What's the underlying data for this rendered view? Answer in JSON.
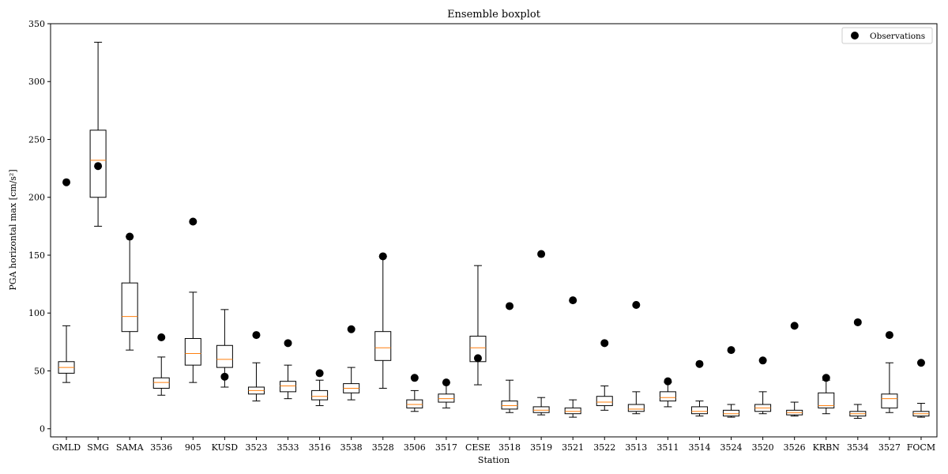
{
  "chart_data": {
    "type": "box",
    "title": "Ensemble boxplot",
    "xlabel": "Station",
    "ylabel": "PGA horizontal max [cm/s²]",
    "ylim": [
      -7,
      350
    ],
    "yticks": [
      0,
      50,
      100,
      150,
      200,
      250,
      300,
      350
    ],
    "legend": {
      "position": "top-right",
      "entries": [
        "Observations"
      ]
    },
    "colors": {
      "median": "#ff7f0e",
      "box": "#000000",
      "observation": "#000000"
    },
    "categories": [
      "GMLD",
      "SMG",
      "SAMA",
      "3536",
      "905",
      "KUSD",
      "3523",
      "3533",
      "3516",
      "3538",
      "3528",
      "3506",
      "3517",
      "CESE",
      "3518",
      "3519",
      "3521",
      "3522",
      "3513",
      "3511",
      "3514",
      "3524",
      "3520",
      "3526",
      "KRBN",
      "3534",
      "3527",
      "FOCM"
    ],
    "boxes": [
      {
        "whislo": 40,
        "q1": 48,
        "med": 53,
        "q3": 58,
        "whishi": 89
      },
      {
        "whislo": 175,
        "q1": 200,
        "med": 232,
        "q3": 258,
        "whishi": 334
      },
      {
        "whislo": 68,
        "q1": 84,
        "med": 97,
        "q3": 126,
        "whishi": 166
      },
      {
        "whislo": 29,
        "q1": 35,
        "med": 40,
        "q3": 44,
        "whishi": 62
      },
      {
        "whislo": 40,
        "q1": 55,
        "med": 65,
        "q3": 78,
        "whishi": 118
      },
      {
        "whislo": 36,
        "q1": 53,
        "med": 60,
        "q3": 72,
        "whishi": 103
      },
      {
        "whislo": 24,
        "q1": 30,
        "med": 33,
        "q3": 36,
        "whishi": 57
      },
      {
        "whislo": 26,
        "q1": 32,
        "med": 37,
        "q3": 41,
        "whishi": 55
      },
      {
        "whislo": 20,
        "q1": 25,
        "med": 28,
        "q3": 33,
        "whishi": 42
      },
      {
        "whislo": 25,
        "q1": 31,
        "med": 35,
        "q3": 39,
        "whishi": 53
      },
      {
        "whislo": 35,
        "q1": 59,
        "med": 70,
        "q3": 84,
        "whishi": 149
      },
      {
        "whislo": 15,
        "q1": 18,
        "med": 21,
        "q3": 25,
        "whishi": 33
      },
      {
        "whislo": 18,
        "q1": 23,
        "med": 26,
        "q3": 30,
        "whishi": 40
      },
      {
        "whislo": 38,
        "q1": 58,
        "med": 70,
        "q3": 80,
        "whishi": 141
      },
      {
        "whislo": 14,
        "q1": 17,
        "med": 20,
        "q3": 24,
        "whishi": 42
      },
      {
        "whislo": 12,
        "q1": 14,
        "med": 16,
        "q3": 19,
        "whishi": 27
      },
      {
        "whislo": 10,
        "q1": 13,
        "med": 15,
        "q3": 18,
        "whishi": 25
      },
      {
        "whislo": 16,
        "q1": 20,
        "med": 23,
        "q3": 28,
        "whishi": 37
      },
      {
        "whislo": 13,
        "q1": 15,
        "med": 17,
        "q3": 21,
        "whishi": 32
      },
      {
        "whislo": 19,
        "q1": 24,
        "med": 27,
        "q3": 32,
        "whishi": 40
      },
      {
        "whislo": 11,
        "q1": 13,
        "med": 15,
        "q3": 19,
        "whishi": 24
      },
      {
        "whislo": 10,
        "q1": 11,
        "med": 13,
        "q3": 16,
        "whishi": 21
      },
      {
        "whislo": 13,
        "q1": 15,
        "med": 18,
        "q3": 21,
        "whishi": 32
      },
      {
        "whislo": 11,
        "q1": 12,
        "med": 14,
        "q3": 16,
        "whishi": 23
      },
      {
        "whislo": 13,
        "q1": 18,
        "med": 20,
        "q3": 31,
        "whishi": 42
      },
      {
        "whislo": 9,
        "q1": 11,
        "med": 13,
        "q3": 15,
        "whishi": 21
      },
      {
        "whislo": 14,
        "q1": 18,
        "med": 26,
        "q3": 30,
        "whishi": 57
      },
      {
        "whislo": 10,
        "q1": 11,
        "med": 13,
        "q3": 15,
        "whishi": 22
      }
    ],
    "observations": [
      213,
      227,
      166,
      79,
      179,
      45,
      81,
      74,
      48,
      86,
      149,
      44,
      40,
      61,
      106,
      151,
      111,
      74,
      107,
      41,
      56,
      68,
      59,
      89,
      44,
      92,
      81,
      57
    ]
  }
}
